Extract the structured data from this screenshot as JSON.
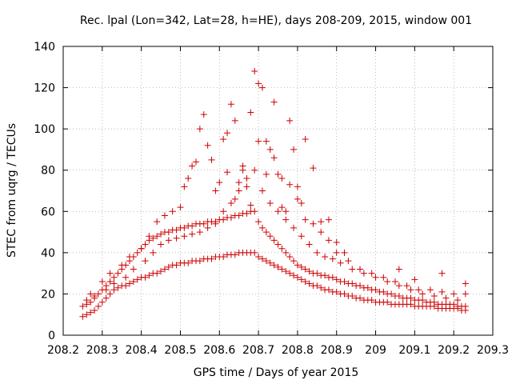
{
  "chart_data": {
    "type": "scatter",
    "title": "Rec. lpal (Lon=342, Lat=28, h=HE), days 208-209, 2015, window 001",
    "xlabel": "GPS time / Days of year 2015",
    "ylabel": "STEC from uqrg / TECUs",
    "xlim": [
      208.2,
      209.3
    ],
    "ylim": [
      0,
      140
    ],
    "xticks": [
      "208.2",
      "208.3",
      "208.4",
      "208.5",
      "208.6",
      "208.7",
      "208.8",
      "208.9",
      "209",
      "209.1",
      "209.2",
      "209.3"
    ],
    "yticks": [
      "0",
      "20",
      "40",
      "60",
      "80",
      "100",
      "120",
      "140"
    ],
    "grid": true,
    "marker": "plus",
    "color": "#cc0000",
    "series": [
      {
        "x": [
          208.25,
          208.26,
          208.27,
          208.28,
          208.29,
          208.3,
          208.31,
          208.32,
          208.33,
          208.34,
          208.35,
          208.36,
          208.37,
          208.38,
          208.39,
          208.4,
          208.41,
          208.42,
          208.43,
          208.44,
          208.45,
          208.46,
          208.47,
          208.48,
          208.49,
          208.5,
          208.51,
          208.52,
          208.53,
          208.54,
          208.55,
          208.56,
          208.57,
          208.58,
          208.59,
          208.6,
          208.61,
          208.62,
          208.63,
          208.64,
          208.65,
          208.66,
          208.67,
          208.68,
          208.69,
          208.7,
          208.71,
          208.72,
          208.73,
          208.74,
          208.75,
          208.76,
          208.77,
          208.78,
          208.79,
          208.8,
          208.81,
          208.82,
          208.83,
          208.84,
          208.85,
          208.86,
          208.87,
          208.88,
          208.89,
          208.9,
          208.91,
          208.92,
          208.93,
          208.94,
          208.95,
          208.96,
          208.97,
          208.98,
          208.99,
          209.0,
          209.01,
          209.02,
          209.03,
          209.04,
          209.05,
          209.06,
          209.07,
          209.08,
          209.09,
          209.1,
          209.11,
          209.12,
          209.13,
          209.14,
          209.15,
          209.16,
          209.17,
          209.18,
          209.19,
          209.2,
          209.21,
          209.22,
          209.23
        ],
        "y": [
          9,
          10,
          11,
          12,
          14,
          16,
          18,
          20,
          22,
          23,
          24,
          24,
          25,
          26,
          27,
          28,
          28,
          29,
          30,
          30,
          31,
          32,
          33,
          34,
          34,
          35,
          35,
          35,
          36,
          36,
          36,
          37,
          37,
          37,
          38,
          38,
          38,
          39,
          39,
          39,
          40,
          40,
          40,
          40,
          40,
          38,
          37,
          36,
          35,
          34,
          33,
          32,
          31,
          30,
          29,
          28,
          27,
          26,
          25,
          24,
          24,
          23,
          22,
          22,
          21,
          21,
          20,
          20,
          19,
          19,
          18,
          18,
          17,
          17,
          17,
          16,
          16,
          16,
          16,
          15,
          15,
          15,
          15,
          15,
          15,
          14,
          14,
          14,
          14,
          14,
          14,
          13,
          13,
          13,
          13,
          13,
          13,
          12,
          12
        ]
      },
      {
        "x": [
          208.25,
          208.26,
          208.27,
          208.28,
          208.29,
          208.3,
          208.31,
          208.32,
          208.33,
          208.34,
          208.35,
          208.36,
          208.37,
          208.38,
          208.39,
          208.4,
          208.41,
          208.42,
          208.43,
          208.44,
          208.45,
          208.46,
          208.47,
          208.48,
          208.49,
          208.5,
          208.51,
          208.52,
          208.53,
          208.54,
          208.55,
          208.56,
          208.57,
          208.58,
          208.59,
          208.6,
          208.61,
          208.62,
          208.63,
          208.64,
          208.65,
          208.66,
          208.67,
          208.68,
          208.69,
          208.7,
          208.71,
          208.72,
          208.73,
          208.74,
          208.75,
          208.76,
          208.77,
          208.78,
          208.79,
          208.8,
          208.81,
          208.82,
          208.83,
          208.84,
          208.85,
          208.86,
          208.87,
          208.88,
          208.89,
          208.9,
          208.91,
          208.92,
          208.93,
          208.94,
          208.95,
          208.96,
          208.97,
          208.98,
          208.99,
          209.0,
          209.01,
          209.02,
          209.03,
          209.04,
          209.05,
          209.06,
          209.07,
          209.08,
          209.09,
          209.1,
          209.11,
          209.12,
          209.13,
          209.14,
          209.15,
          209.16,
          209.17,
          209.18,
          209.19,
          209.2,
          209.21,
          209.22,
          209.23
        ],
        "y": [
          14,
          15,
          16,
          18,
          20,
          22,
          24,
          26,
          28,
          30,
          32,
          34,
          36,
          38,
          40,
          42,
          44,
          46,
          47,
          48,
          49,
          50,
          50,
          51,
          51,
          52,
          52,
          53,
          53,
          54,
          54,
          54,
          55,
          55,
          55,
          56,
          56,
          57,
          57,
          58,
          58,
          59,
          59,
          60,
          60,
          55,
          52,
          50,
          48,
          46,
          44,
          42,
          40,
          38,
          36,
          34,
          33,
          32,
          31,
          30,
          30,
          29,
          29,
          28,
          28,
          27,
          26,
          26,
          25,
          25,
          24,
          24,
          23,
          23,
          22,
          22,
          21,
          21,
          20,
          20,
          19,
          19,
          18,
          18,
          18,
          17,
          17,
          17,
          16,
          16,
          16,
          15,
          15,
          15,
          15,
          15,
          14,
          14,
          14
        ]
      },
      {
        "x": [
          208.27,
          208.3,
          208.32,
          208.35,
          208.37,
          208.4,
          208.42,
          208.44,
          208.46,
          208.48,
          208.5,
          208.51,
          208.52,
          208.53,
          208.54,
          208.55,
          208.56,
          208.57,
          208.58,
          208.59,
          208.6,
          208.61,
          208.62,
          208.63,
          208.64,
          208.65,
          208.66,
          208.67,
          208.68,
          208.69,
          208.7,
          208.71,
          208.72,
          208.73,
          208.74,
          208.75,
          208.76,
          208.77,
          208.78,
          208.79,
          208.8,
          208.81,
          208.82,
          208.84,
          208.86,
          208.88,
          208.9,
          208.93,
          208.96,
          208.99,
          209.02,
          209.05,
          209.08,
          209.11,
          209.14,
          209.17,
          209.2,
          209.23
        ],
        "y": [
          20,
          26,
          30,
          34,
          38,
          42,
          48,
          55,
          58,
          60,
          62,
          72,
          76,
          82,
          84,
          100,
          107,
          92,
          85,
          70,
          74,
          95,
          98,
          112,
          104,
          74,
          80,
          72,
          108,
          128,
          122,
          120,
          94,
          90,
          86,
          78,
          62,
          60,
          104,
          90,
          72,
          64,
          56,
          54,
          50,
          46,
          40,
          36,
          32,
          30,
          28,
          26,
          24,
          22,
          22,
          21,
          20,
          20
        ]
      },
      {
        "x": [
          208.26,
          208.28,
          208.31,
          208.33,
          208.36,
          208.38,
          208.41,
          208.43,
          208.45,
          208.47,
          208.49,
          208.51,
          208.53,
          208.55,
          208.57,
          208.59,
          208.61,
          208.63,
          208.65,
          208.67,
          208.69,
          208.71,
          208.73,
          208.75,
          208.77,
          208.79,
          208.81,
          208.83,
          208.85,
          208.87,
          208.89,
          208.91,
          208.94,
          208.97,
          209.0,
          209.03,
          209.06,
          209.09,
          209.12,
          209.15,
          209.18,
          209.21
        ],
        "y": [
          17,
          19,
          22,
          25,
          28,
          32,
          36,
          40,
          44,
          46,
          47,
          48,
          49,
          50,
          52,
          54,
          60,
          64,
          70,
          76,
          80,
          70,
          64,
          60,
          56,
          52,
          48,
          44,
          40,
          38,
          37,
          35,
          32,
          30,
          28,
          26,
          24,
          22,
          20,
          19,
          18,
          17
        ]
      },
      {
        "x": [
          208.62,
          208.64,
          208.66,
          208.68,
          208.7,
          208.72,
          208.74,
          208.76,
          208.78,
          208.8,
          208.82,
          208.84,
          208.86,
          208.88,
          208.9,
          208.92,
          209.06,
          209.1,
          209.17,
          209.23
        ],
        "y": [
          79,
          66,
          82,
          63,
          94,
          78,
          113,
          76,
          73,
          66,
          95,
          81,
          55,
          56,
          45,
          40,
          32,
          27,
          30,
          25
        ]
      }
    ]
  }
}
